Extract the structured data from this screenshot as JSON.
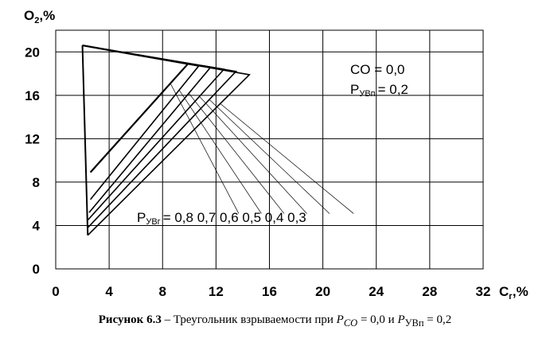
{
  "chart_data": {
    "type": "line",
    "xlabel": "C",
    "xlabel_subscript": "г",
    "xlabel_suffix": ",%",
    "ylabel": "O",
    "ylabel_subscript": "2",
    "ylabel_suffix": ",%",
    "xlim": [
      0,
      32
    ],
    "ylim": [
      0,
      20
    ],
    "xticks": [
      "0",
      "4",
      "8",
      "12",
      "16",
      "20",
      "24",
      "28",
      "32"
    ],
    "yticks": [
      "0",
      "4",
      "8",
      "12",
      "16",
      "20"
    ],
    "grid": true,
    "annotation_co": "CO  = 0,0",
    "annotation_pyv_main": "P",
    "annotation_pyv_sub": "УВп",
    "annotation_pyv_value": "= 0,2",
    "curves_label_main": "P",
    "curves_label_sub": "УВг",
    "curves_label_values": "= 0,8  0,7  0,6  0,5  0,4  0,3",
    "apex": {
      "x": 2.0,
      "y": 20.6
    },
    "curves": [
      {
        "label": "0,8",
        "left": {
          "x": 2.6,
          "y": 8.9
        },
        "right": {
          "x": 9.9,
          "y": 18.9
        },
        "leader_end": {
          "x": 13.7,
          "y": 5.1
        }
      },
      {
        "label": "0,7",
        "left": {
          "x": 2.6,
          "y": 6.4
        },
        "right": {
          "x": 10.7,
          "y": 18.7
        },
        "leader_end": {
          "x": 15.4,
          "y": 5.1
        }
      },
      {
        "label": "0,6",
        "left": {
          "x": 2.5,
          "y": 5.2
        },
        "right": {
          "x": 11.6,
          "y": 18.6
        },
        "leader_end": {
          "x": 17.1,
          "y": 5.1
        }
      },
      {
        "label": "0,5",
        "left": {
          "x": 2.4,
          "y": 4.5
        },
        "right": {
          "x": 12.6,
          "y": 18.4
        },
        "leader_end": {
          "x": 18.8,
          "y": 5.1
        }
      },
      {
        "label": "0,4",
        "left": {
          "x": 2.4,
          "y": 3.8
        },
        "right": {
          "x": 13.5,
          "y": 18.2
        },
        "leader_end": {
          "x": 20.5,
          "y": 5.1
        }
      },
      {
        "label": "0,3",
        "left": {
          "x": 2.4,
          "y": 3.1
        },
        "right": {
          "x": 14.5,
          "y": 17.9
        },
        "leader_end": {
          "x": 22.3,
          "y": 5.1
        }
      }
    ]
  },
  "caption": {
    "lead": "Рисунок 6.3",
    "text": " – Треугольник взрываемости при ",
    "p_co": "P",
    "p_co_sub": "CO",
    "eq1": " = 0,0 и ",
    "p_uvp": "P",
    "p_uvp_sub": "УВп",
    "eq2": " = 0,2"
  }
}
